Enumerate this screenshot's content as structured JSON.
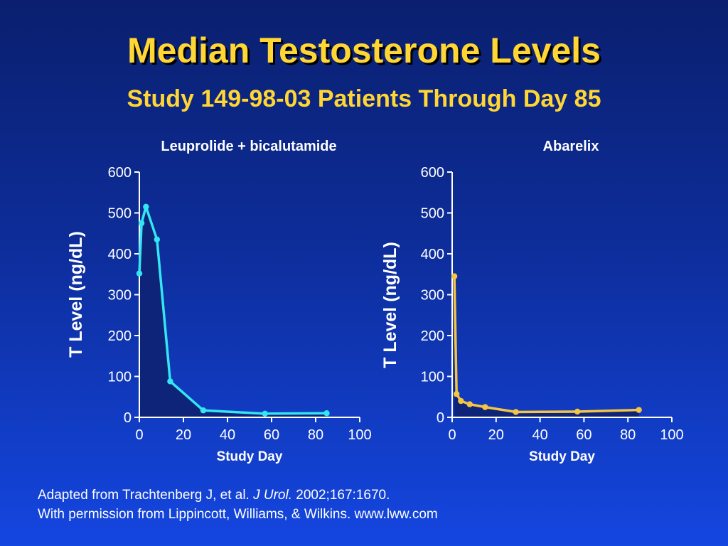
{
  "slide": {
    "title": "Median Testosterone Levels",
    "subtitle": "Study 149-98-03 Patients Through Day 85",
    "footer": {
      "line1_pre": "Adapted from Trachtenberg J, et al. ",
      "line1_journal": "J Urol.",
      "line1_post": " 2002;167:1670.",
      "line2": "With permission from Lippincott, Williams, & Wilkins. www.lww.com"
    }
  },
  "chart_data": [
    {
      "type": "area",
      "title": "Leuprolide + bicalutamide",
      "xlabel": "Study Day",
      "ylabel": "T Level (ng/dL)",
      "xlim": [
        0,
        100
      ],
      "ylim": [
        0,
        600
      ],
      "xticks": [
        0,
        20,
        40,
        60,
        80,
        100
      ],
      "yticks": [
        0,
        100,
        200,
        300,
        400,
        500,
        600
      ],
      "grid": false,
      "color": "#33e6f2",
      "fill": "#0d2478",
      "x": [
        0,
        1,
        3,
        8,
        14,
        29,
        57,
        85
      ],
      "y": [
        352,
        475,
        515,
        435,
        88,
        17,
        9,
        10
      ]
    },
    {
      "type": "area",
      "title": "Abarelix",
      "xlabel": "Study Day",
      "ylabel": "T Level (ng/dL)",
      "xlim": [
        0,
        100
      ],
      "ylim": [
        0,
        600
      ],
      "xticks": [
        0,
        20,
        40,
        60,
        80,
        100
      ],
      "yticks": [
        0,
        100,
        200,
        300,
        400,
        500,
        600
      ],
      "grid": false,
      "color": "#f5c542",
      "fill": "#0d2478",
      "x": [
        1,
        2,
        4,
        8,
        15,
        29,
        57,
        85
      ],
      "y": [
        345,
        57,
        40,
        32,
        25,
        13,
        14,
        18
      ]
    }
  ]
}
